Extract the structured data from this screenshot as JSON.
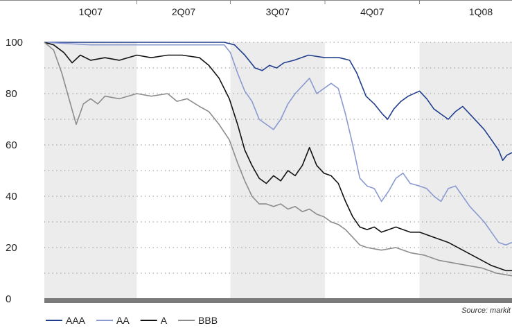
{
  "chart_data": {
    "type": "line",
    "quarters": [
      "1Q07",
      "2Q07",
      "3Q07",
      "4Q07",
      "1Q08"
    ],
    "shaded_quarters": [
      "1Q07",
      "3Q07",
      "1Q08"
    ],
    "ylim": [
      0,
      100
    ],
    "yticks": [
      0,
      20,
      40,
      60,
      80,
      100
    ],
    "grid": "dotted horizontal",
    "legend_position": "bottom-left",
    "source": "Source: markit",
    "x_start": "2007-01-01",
    "x_end": "2008-03-31",
    "series": [
      {
        "name": "AAA",
        "color": "#1f3d8c",
        "points": [
          [
            "2007-01-01",
            100
          ],
          [
            "2007-02-15",
            100
          ],
          [
            "2007-04-01",
            100
          ],
          [
            "2007-05-15",
            100
          ],
          [
            "2007-06-25",
            100
          ],
          [
            "2007-07-05",
            99
          ],
          [
            "2007-07-15",
            95
          ],
          [
            "2007-07-25",
            90
          ],
          [
            "2007-08-01",
            89
          ],
          [
            "2007-08-08",
            91
          ],
          [
            "2007-08-15",
            90
          ],
          [
            "2007-08-22",
            92
          ],
          [
            "2007-09-01",
            93
          ],
          [
            "2007-09-15",
            95
          ],
          [
            "2007-10-01",
            94
          ],
          [
            "2007-10-15",
            94
          ],
          [
            "2007-10-25",
            93
          ],
          [
            "2007-11-01",
            88
          ],
          [
            "2007-11-10",
            79
          ],
          [
            "2007-11-18",
            76
          ],
          [
            "2007-11-26",
            72
          ],
          [
            "2007-12-01",
            70
          ],
          [
            "2007-12-07",
            74
          ],
          [
            "2007-12-14",
            77
          ],
          [
            "2007-12-21",
            79
          ],
          [
            "2008-01-01",
            81
          ],
          [
            "2008-01-08",
            78
          ],
          [
            "2008-01-15",
            74
          ],
          [
            "2008-01-22",
            72
          ],
          [
            "2008-01-29",
            70
          ],
          [
            "2008-02-05",
            73
          ],
          [
            "2008-02-12",
            75
          ],
          [
            "2008-02-19",
            72
          ],
          [
            "2008-02-26",
            69
          ],
          [
            "2008-03-04",
            66
          ],
          [
            "2008-03-11",
            62
          ],
          [
            "2008-03-18",
            58
          ],
          [
            "2008-03-22",
            54
          ],
          [
            "2008-03-26",
            56
          ],
          [
            "2008-03-31",
            57
          ]
        ]
      },
      {
        "name": "AA",
        "color": "#8a9ad0",
        "points": [
          [
            "2007-01-01",
            100
          ],
          [
            "2007-02-15",
            99
          ],
          [
            "2007-04-01",
            99
          ],
          [
            "2007-05-15",
            99
          ],
          [
            "2007-06-25",
            99
          ],
          [
            "2007-07-01",
            96
          ],
          [
            "2007-07-08",
            88
          ],
          [
            "2007-07-15",
            81
          ],
          [
            "2007-07-22",
            77
          ],
          [
            "2007-07-29",
            70
          ],
          [
            "2007-08-05",
            68
          ],
          [
            "2007-08-12",
            66
          ],
          [
            "2007-08-19",
            70
          ],
          [
            "2007-08-26",
            76
          ],
          [
            "2007-09-02",
            80
          ],
          [
            "2007-09-09",
            83
          ],
          [
            "2007-09-16",
            86
          ],
          [
            "2007-09-23",
            80
          ],
          [
            "2007-09-30",
            82
          ],
          [
            "2007-10-07",
            84
          ],
          [
            "2007-10-14",
            82
          ],
          [
            "2007-10-21",
            72
          ],
          [
            "2007-10-28",
            60
          ],
          [
            "2007-11-04",
            47
          ],
          [
            "2007-11-11",
            44
          ],
          [
            "2007-11-18",
            43
          ],
          [
            "2007-11-25",
            38
          ],
          [
            "2007-12-02",
            42
          ],
          [
            "2007-12-09",
            47
          ],
          [
            "2007-12-16",
            49
          ],
          [
            "2007-12-23",
            45
          ],
          [
            "2008-01-01",
            44
          ],
          [
            "2008-01-08",
            43
          ],
          [
            "2008-01-15",
            40
          ],
          [
            "2008-01-22",
            38
          ],
          [
            "2008-01-29",
            43
          ],
          [
            "2008-02-05",
            44
          ],
          [
            "2008-02-12",
            40
          ],
          [
            "2008-02-19",
            36
          ],
          [
            "2008-02-26",
            33
          ],
          [
            "2008-03-04",
            30
          ],
          [
            "2008-03-11",
            26
          ],
          [
            "2008-03-18",
            22
          ],
          [
            "2008-03-25",
            21
          ],
          [
            "2008-03-31",
            22
          ]
        ]
      },
      {
        "name": "A",
        "color": "#111111",
        "points": [
          [
            "2007-01-01",
            100
          ],
          [
            "2007-01-10",
            99
          ],
          [
            "2007-01-20",
            96
          ],
          [
            "2007-01-28",
            92
          ],
          [
            "2007-02-05",
            95
          ],
          [
            "2007-02-15",
            93
          ],
          [
            "2007-03-01",
            94
          ],
          [
            "2007-03-15",
            93
          ],
          [
            "2007-04-01",
            95
          ],
          [
            "2007-04-15",
            94
          ],
          [
            "2007-05-01",
            95
          ],
          [
            "2007-05-15",
            95
          ],
          [
            "2007-06-01",
            94
          ],
          [
            "2007-06-10",
            91
          ],
          [
            "2007-06-20",
            86
          ],
          [
            "2007-06-30",
            78
          ],
          [
            "2007-07-08",
            68
          ],
          [
            "2007-07-15",
            58
          ],
          [
            "2007-07-22",
            52
          ],
          [
            "2007-07-29",
            47
          ],
          [
            "2007-08-05",
            45
          ],
          [
            "2007-08-12",
            48
          ],
          [
            "2007-08-19",
            46
          ],
          [
            "2007-08-26",
            50
          ],
          [
            "2007-09-02",
            48
          ],
          [
            "2007-09-09",
            52
          ],
          [
            "2007-09-16",
            59
          ],
          [
            "2007-09-23",
            52
          ],
          [
            "2007-09-30",
            49
          ],
          [
            "2007-10-07",
            48
          ],
          [
            "2007-10-14",
            45
          ],
          [
            "2007-10-21",
            38
          ],
          [
            "2007-10-28",
            32
          ],
          [
            "2007-11-04",
            28
          ],
          [
            "2007-11-11",
            27
          ],
          [
            "2007-11-18",
            28
          ],
          [
            "2007-11-25",
            26
          ],
          [
            "2007-12-02",
            27
          ],
          [
            "2007-12-09",
            28
          ],
          [
            "2007-12-16",
            27
          ],
          [
            "2007-12-23",
            26
          ],
          [
            "2008-01-01",
            26
          ],
          [
            "2008-01-15",
            24
          ],
          [
            "2008-01-29",
            22
          ],
          [
            "2008-02-12",
            19
          ],
          [
            "2008-02-26",
            16
          ],
          [
            "2008-03-11",
            13
          ],
          [
            "2008-03-25",
            11
          ],
          [
            "2008-03-31",
            11
          ]
        ]
      },
      {
        "name": "BBB",
        "color": "#8c8c8c",
        "points": [
          [
            "2007-01-01",
            100
          ],
          [
            "2007-01-10",
            97
          ],
          [
            "2007-01-18",
            88
          ],
          [
            "2007-01-25",
            78
          ],
          [
            "2007-02-01",
            68
          ],
          [
            "2007-02-08",
            76
          ],
          [
            "2007-02-15",
            78
          ],
          [
            "2007-02-22",
            76
          ],
          [
            "2007-03-01",
            79
          ],
          [
            "2007-03-15",
            78
          ],
          [
            "2007-04-01",
            80
          ],
          [
            "2007-04-15",
            79
          ],
          [
            "2007-05-01",
            80
          ],
          [
            "2007-05-10",
            77
          ],
          [
            "2007-05-20",
            78
          ],
          [
            "2007-06-01",
            75
          ],
          [
            "2007-06-10",
            73
          ],
          [
            "2007-06-20",
            68
          ],
          [
            "2007-06-30",
            62
          ],
          [
            "2007-07-08",
            53
          ],
          [
            "2007-07-15",
            46
          ],
          [
            "2007-07-22",
            40
          ],
          [
            "2007-07-29",
            37
          ],
          [
            "2007-08-05",
            37
          ],
          [
            "2007-08-12",
            36
          ],
          [
            "2007-08-19",
            37
          ],
          [
            "2007-08-26",
            35
          ],
          [
            "2007-09-02",
            36
          ],
          [
            "2007-09-09",
            34
          ],
          [
            "2007-09-16",
            35
          ],
          [
            "2007-09-23",
            33
          ],
          [
            "2007-09-30",
            32
          ],
          [
            "2007-10-07",
            30
          ],
          [
            "2007-10-14",
            29
          ],
          [
            "2007-10-21",
            27
          ],
          [
            "2007-10-28",
            24
          ],
          [
            "2007-11-04",
            21
          ],
          [
            "2007-11-11",
            20
          ],
          [
            "2007-11-25",
            19
          ],
          [
            "2007-12-09",
            20
          ],
          [
            "2007-12-23",
            18
          ],
          [
            "2008-01-06",
            17
          ],
          [
            "2008-01-20",
            15
          ],
          [
            "2008-02-03",
            14
          ],
          [
            "2008-02-17",
            13
          ],
          [
            "2008-03-02",
            12
          ],
          [
            "2008-03-16",
            10
          ],
          [
            "2008-03-31",
            9
          ]
        ]
      }
    ]
  }
}
